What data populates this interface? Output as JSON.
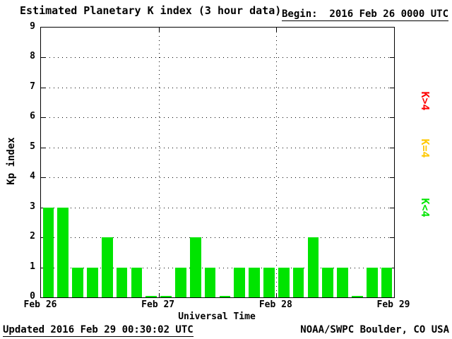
{
  "header": {
    "title": "Estimated Planetary K index (3 hour data)",
    "begin": "Begin:  2016 Feb 26 0000 UTC"
  },
  "footer": {
    "updated": "Updated 2016 Feb 29 00:30:02 UTC",
    "source": "NOAA/SWPC Boulder, CO USA"
  },
  "legend": {
    "items": [
      {
        "label": "K>4",
        "color": "#ff0000"
      },
      {
        "label": "K=4",
        "color": "#ffc800"
      },
      {
        "label": "K<4",
        "color": "#00e400"
      }
    ]
  },
  "chart_data": {
    "type": "bar",
    "title": "Estimated Planetary K index (3 hour data)",
    "begin": "2016 Feb 26 0000 UTC",
    "xlabel": "Universal Time",
    "ylabel": "Kp index",
    "ylim": [
      0,
      9
    ],
    "y_ticks": [
      0,
      1,
      2,
      3,
      4,
      5,
      6,
      7,
      8,
      9
    ],
    "x_tick_labels": [
      "Feb 26",
      "Feb 27",
      "Feb 28",
      "Feb 29"
    ],
    "grid": true,
    "legend_position": "right",
    "bar_color_rule": {
      "lt4": "#00e400",
      "eq4": "#ffc800",
      "gt4": "#ff0000"
    },
    "categories": [
      "Feb 26 00-03",
      "Feb 26 03-06",
      "Feb 26 06-09",
      "Feb 26 09-12",
      "Feb 26 12-15",
      "Feb 26 15-18",
      "Feb 26 18-21",
      "Feb 26 21-24",
      "Feb 27 00-03",
      "Feb 27 03-06",
      "Feb 27 06-09",
      "Feb 27 09-12",
      "Feb 27 12-15",
      "Feb 27 15-18",
      "Feb 27 18-21",
      "Feb 27 21-24",
      "Feb 28 00-03",
      "Feb 28 03-06",
      "Feb 28 06-09",
      "Feb 28 09-12",
      "Feb 28 12-15",
      "Feb 28 15-18",
      "Feb 28 18-21",
      "Feb 28 21-24"
    ],
    "values": [
      3,
      3,
      1,
      1,
      2,
      1,
      1,
      0,
      0,
      1,
      2,
      1,
      0,
      1,
      1,
      1,
      1,
      1,
      2,
      1,
      1,
      0,
      1,
      1
    ]
  }
}
